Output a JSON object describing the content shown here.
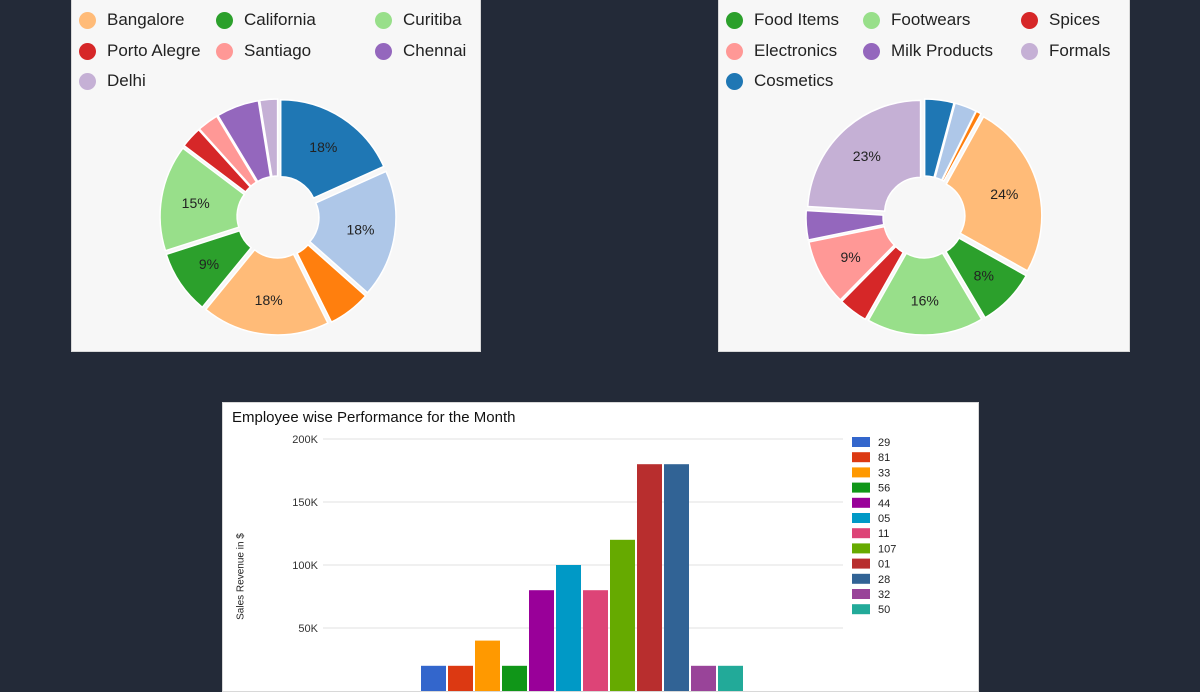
{
  "chart_data": [
    {
      "type": "pie",
      "variant": "donut",
      "categories": [
        "Bangalore",
        "California",
        "Curitiba",
        "Porto Alegre",
        "Santiago",
        "Chennai",
        "Delhi"
      ],
      "legend_order": [
        "Bangalore",
        "California",
        "Curitiba",
        "Porto Alegre",
        "Santiago",
        "Chennai",
        "Delhi"
      ],
      "slices": [
        {
          "label": "",
          "value": 18,
          "value_label": "18%",
          "color": "#1f77b4"
        },
        {
          "label": "",
          "value": 18,
          "value_label": "18%",
          "color": "#aec7e8"
        },
        {
          "label": "",
          "value": 6,
          "value_label": "",
          "color": "#ff7f0e"
        },
        {
          "label": "Bangalore",
          "value": 18,
          "value_label": "18%",
          "color": "#ffbb78"
        },
        {
          "label": "California",
          "value": 9,
          "value_label": "9%",
          "color": "#2ca02c"
        },
        {
          "label": "Curitiba",
          "value": 15,
          "value_label": "15%",
          "color": "#98df8a"
        },
        {
          "label": "Porto Alegre",
          "value": 3,
          "value_label": "",
          "color": "#d62728"
        },
        {
          "label": "Santiago",
          "value": 3,
          "value_label": "",
          "color": "#ff9896"
        },
        {
          "label": "Chennai",
          "value": 6,
          "value_label": "",
          "color": "#9467bd"
        },
        {
          "label": "Delhi",
          "value": 2.5,
          "value_label": "",
          "color": "#c5b0d5"
        }
      ]
    },
    {
      "type": "pie",
      "variant": "donut",
      "categories": [
        "Food Items",
        "Footwears",
        "Spices",
        "Electronics",
        "Milk Products",
        "Formals",
        "Cosmetics"
      ],
      "legend_order": [
        "Food Items",
        "Footwears",
        "Spices",
        "Electronics",
        "Milk Products",
        "Formals",
        "Cosmetics"
      ],
      "slices": [
        {
          "label": "Cosmetics",
          "value": 4,
          "value_label": "",
          "color": "#1f77b4"
        },
        {
          "label": "",
          "value": 3,
          "value_label": "",
          "color": "#aec7e8"
        },
        {
          "label": "",
          "value": 0.7,
          "value_label": "",
          "color": "#ff7f0e"
        },
        {
          "label": "",
          "value": 24,
          "value_label": "24%",
          "color": "#ffbb78"
        },
        {
          "label": "Food Items",
          "value": 8,
          "value_label": "8%",
          "color": "#2ca02c"
        },
        {
          "label": "Footwears",
          "value": 16,
          "value_label": "16%",
          "color": "#98df8a"
        },
        {
          "label": "Spices",
          "value": 4,
          "value_label": "",
          "color": "#d62728"
        },
        {
          "label": "Electronics",
          "value": 9,
          "value_label": "9%",
          "color": "#ff9896"
        },
        {
          "label": "Milk Products",
          "value": 4,
          "value_label": "",
          "color": "#9467bd"
        },
        {
          "label": "Formals",
          "value": 23,
          "value_label": "23%",
          "color": "#c5b0d5"
        }
      ]
    },
    {
      "type": "bar",
      "title": "Employee wise Performance for the Month",
      "xlabel": "",
      "ylabel": "Sales Revenue in $",
      "ylim": [
        0,
        200000
      ],
      "yticks": [
        50000,
        100000,
        150000,
        200000
      ],
      "ytick_labels": [
        "50K",
        "100K",
        "150K",
        "200K"
      ],
      "grid": true,
      "legend_position": "right",
      "series": [
        {
          "name": "29",
          "value": 20000,
          "color": "#3366cc"
        },
        {
          "name": "81",
          "value": 20000,
          "color": "#dc3912"
        },
        {
          "name": "33",
          "value": 40000,
          "color": "#ff9900"
        },
        {
          "name": "56",
          "value": 20000,
          "color": "#109618"
        },
        {
          "name": "44",
          "value": 80000,
          "color": "#990099"
        },
        {
          "name": "05",
          "value": 100000,
          "color": "#0099c6"
        },
        {
          "name": "11",
          "value": 80000,
          "color": "#dd4477"
        },
        {
          "name": "107",
          "value": 120000,
          "color": "#66aa00"
        },
        {
          "name": "01",
          "value": 180000,
          "color": "#b82e2e"
        },
        {
          "name": "28",
          "value": 180000,
          "color": "#316395"
        },
        {
          "name": "32",
          "value": 20000,
          "color": "#994499"
        },
        {
          "name": "50",
          "value": 20000,
          "color": "#22aa99"
        }
      ]
    }
  ]
}
